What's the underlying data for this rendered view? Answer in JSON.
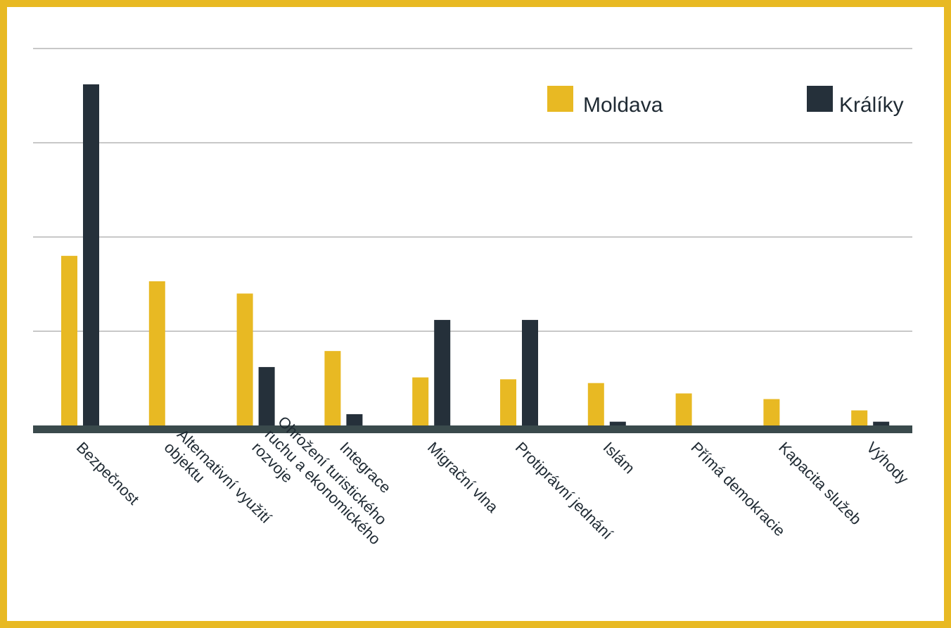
{
  "colors": {
    "frame": "#E8B923",
    "moldava": "#E8B923",
    "kraliky": "#25303A",
    "axis": "#3A4A4C",
    "grid": "#C8C8C8"
  },
  "chart_data": {
    "type": "bar",
    "title": "",
    "xlabel": "",
    "ylabel": "",
    "grid": true,
    "legend_position": "top-right",
    "ylim": [
      0,
      38
    ],
    "gridlines": [
      10,
      20,
      30,
      40
    ],
    "categories": [
      [
        "Bezpečnost"
      ],
      [
        "Alternativní využití",
        "objektu"
      ],
      [
        "Ohrožení turistického",
        "ruchu a ekonomického",
        "rozvoje"
      ],
      [
        "Integrace"
      ],
      [
        "Migrační vlna"
      ],
      [
        "Protiprávní jednání"
      ],
      [
        "Islám"
      ],
      [
        "Přímá demokracie"
      ],
      [
        "Kapacita služeb"
      ],
      [
        "Výhody"
      ]
    ],
    "series": [
      {
        "name": "Moldava",
        "values": [
          18,
          15.3,
          14,
          7.9,
          5.1,
          4.9,
          4.5,
          3.4,
          2.8,
          1.6
        ]
      },
      {
        "name": "Králíky",
        "values": [
          36.2,
          0,
          6.2,
          1.2,
          11.2,
          11.2,
          0.4,
          0,
          0,
          0.4
        ]
      }
    ]
  }
}
